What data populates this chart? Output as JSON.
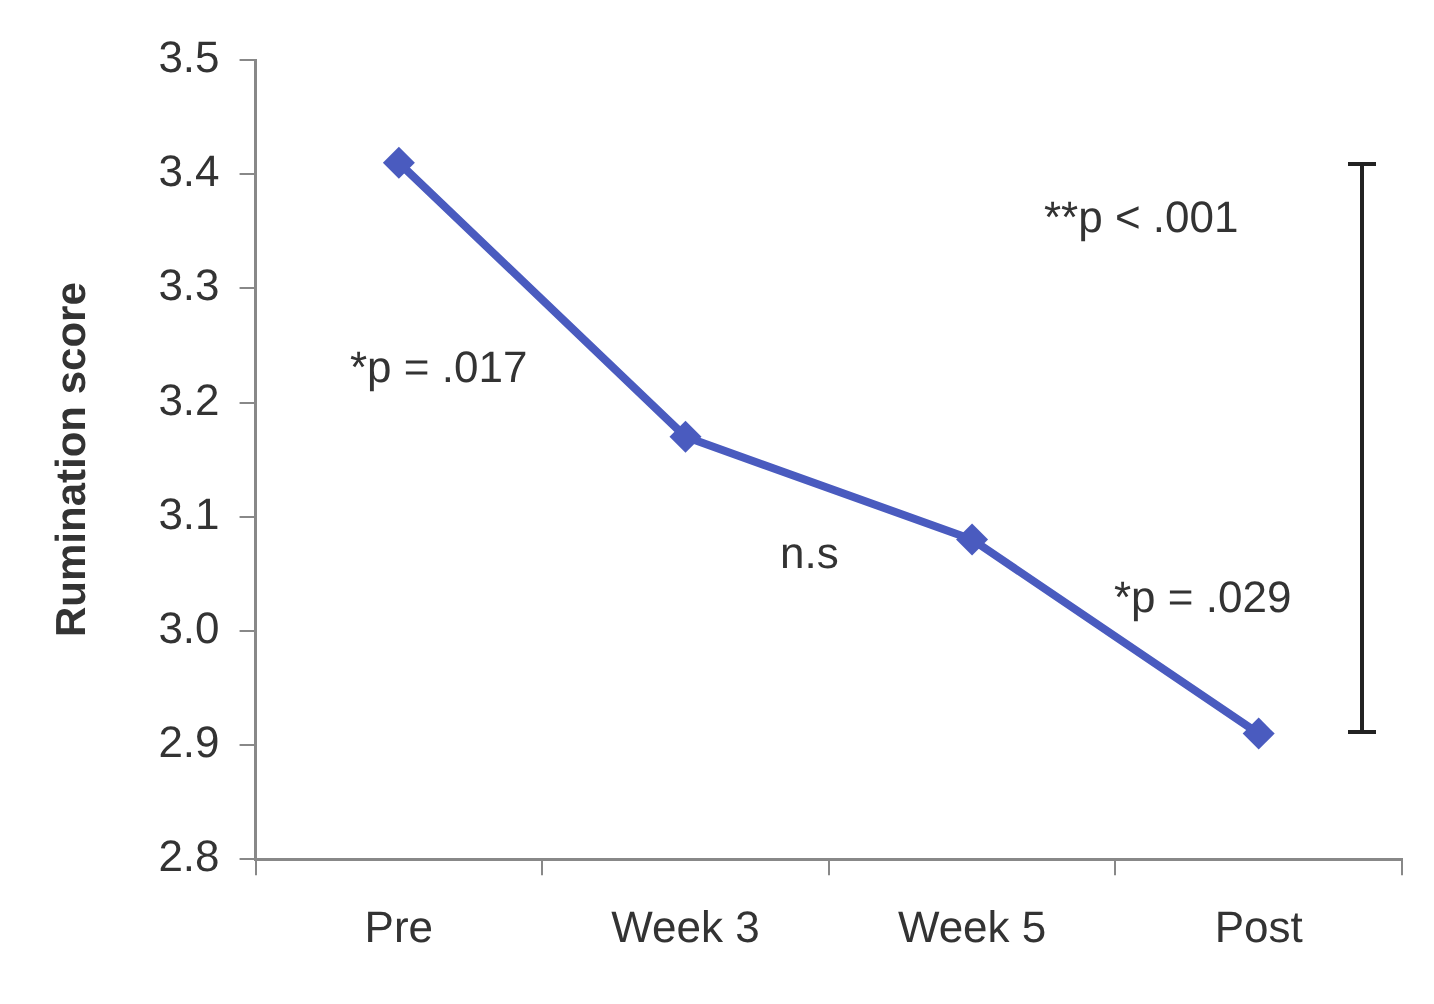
{
  "chart_data": {
    "type": "line",
    "ylabel": "Rumination score",
    "categories": [
      "Pre",
      "Week 3",
      "Week 5",
      "Post"
    ],
    "series": [
      {
        "color": "#4a5bbf",
        "values": [
          3.41,
          3.17,
          3.08,
          2.91
        ]
      }
    ],
    "ylim": [
      2.8,
      3.5
    ],
    "yticks": [
      2.8,
      2.9,
      {
        "value": 3.0,
        "label": "3.0"
      },
      3.1,
      3.2,
      3.3,
      3.4,
      3.5
    ],
    "grid": false,
    "legend": false,
    "marker": "diamond",
    "line_style": "solid",
    "annotations": [
      "*p = .017",
      "n.s",
      "*p = .029",
      "**p < .001"
    ]
  }
}
